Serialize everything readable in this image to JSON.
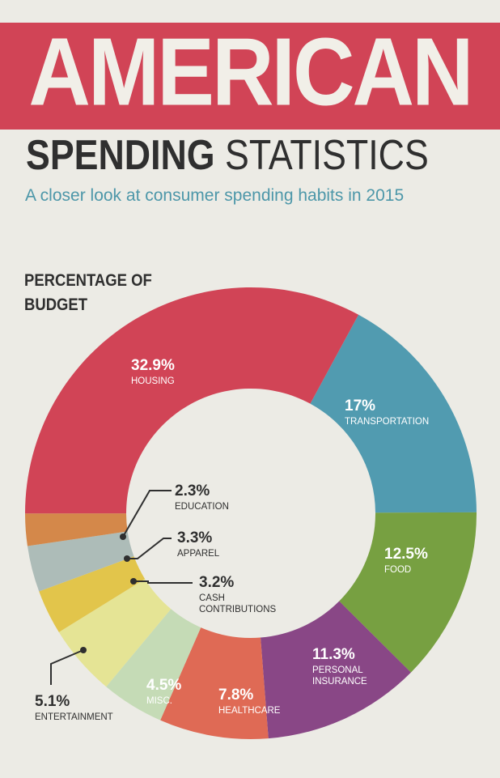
{
  "header": {
    "title": "AMERICAN",
    "subtitle_bold": "SPENDING",
    "subtitle_light": "STATISTICS",
    "tagline": "A closer look at consumer spending habits in 2015"
  },
  "section": {
    "title_line1": "PERCENTAGE OF",
    "title_line2": "BUDGET"
  },
  "colors": {
    "banner": "#d14456",
    "background": "#ecebe5",
    "tagline": "#4d97a9",
    "text_dark": "#2f2f2f"
  },
  "chart_data": {
    "type": "pie",
    "donut": true,
    "title": "PERCENTAGE OF BUDGET",
    "slices": [
      {
        "label": "TRANSPORTATION",
        "value": 17,
        "display": "17%",
        "color": "#519bb0"
      },
      {
        "label": "FOOD",
        "value": 12.5,
        "display": "12.5%",
        "color": "#77a041"
      },
      {
        "label": "PERSONAL INSURANCE",
        "value": 11.3,
        "display": "11.3%",
        "color": "#894786"
      },
      {
        "label": "HEALTHCARE",
        "value": 7.8,
        "display": "7.8%",
        "color": "#df6a55"
      },
      {
        "label": "MISC.",
        "value": 4.5,
        "display": "4.5%",
        "color": "#c5dbb6"
      },
      {
        "label": "ENTERTAINMENT",
        "value": 5.1,
        "display": "5.1%",
        "color": "#e5e495"
      },
      {
        "label": "CASH CONTRIBUTIONS",
        "value": 3.2,
        "display": "3.2%",
        "color": "#e2c54b"
      },
      {
        "label": "APPAREL",
        "value": 3.3,
        "display": "3.3%",
        "color": "#adbcb8"
      },
      {
        "label": "EDUCATION",
        "value": 2.3,
        "display": "2.3%",
        "color": "#d4884a"
      },
      {
        "label": "HOUSING",
        "value": 32.9,
        "display": "32.9%",
        "color": "#d14456"
      }
    ]
  }
}
